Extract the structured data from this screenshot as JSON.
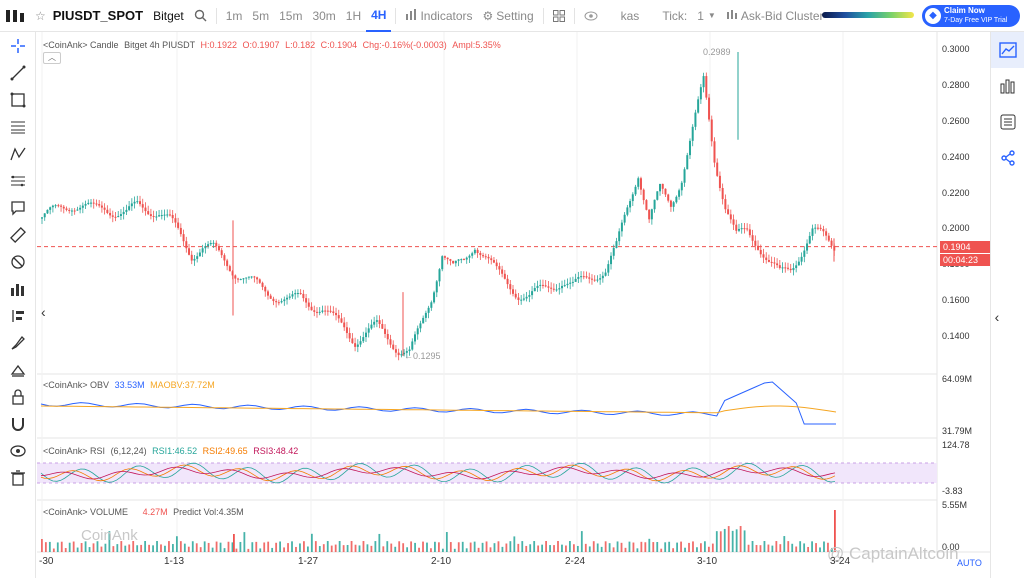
{
  "topbar": {
    "symbol": "PIUSDT_SPOT",
    "exchange": "Bitget",
    "timeframes": [
      "1m",
      "5m",
      "15m",
      "30m",
      "1H",
      "4H"
    ],
    "active_timeframe": "4H",
    "indicators_label": "Indicators",
    "setting_label": "Setting",
    "kas_label": "kas",
    "tick_label": "Tick:",
    "tick_value": "1",
    "askbid_label": "Ask-Bid Cluster",
    "claim_title": "Claim Now",
    "claim_sub": "7-Day Free VIP Trial"
  },
  "main_pane": {
    "label": "<CoinAnk> Candle",
    "legend_symbol": "Bitget 4h PIUSDT",
    "high": "H:0.1922",
    "open": "O:0.1907",
    "low": "L:0.182",
    "close": "C:0.1904",
    "chg": "Chg:-0.16%(-0.0003)",
    "ampl": "Ampl:5.35%",
    "high_marker": "0.2989",
    "low_marker": "0.1295",
    "price_ticks": [
      "0.3000",
      "0.2800",
      "0.2600",
      "0.2400",
      "0.2200",
      "0.2000",
      "0.1800",
      "0.1600",
      "0.1400"
    ],
    "last_price": "0.1904",
    "countdown": "00:04:23"
  },
  "obv_pane": {
    "label": "<CoinAnk> OBV",
    "obv_value": "33.53M",
    "maobv": "MAOBV:37.72M",
    "axis_top": "64.09M",
    "axis_bottom": "31.79M"
  },
  "rsi_pane": {
    "label": "<CoinAnk> RSI",
    "params": "(6,12,24)",
    "rsi1": "RSI1:46.52",
    "rsi2": "RSI2:49.65",
    "rsi3": "RSI3:48.42",
    "axis_top": "124.78",
    "axis_bottom": "-3.83"
  },
  "volume_pane": {
    "label": "<CoinAnk> VOLUME",
    "volume": "4.27M",
    "predict": "Predict Vol:4.35M",
    "axis_top": "5.55M",
    "axis_bottom": "0.00"
  },
  "xaxis": [
    "-30",
    "1-13",
    "1-27",
    "2-10",
    "2-24",
    "3-10",
    "3-24"
  ],
  "auto_label": "AUTO",
  "watermark_left": "CoinAnk",
  "watermark_right": "@ CaptainAltcoin",
  "colors": {
    "accent": "#2962ff",
    "up": "#26a69a",
    "down": "#ef5350"
  },
  "chart_data": {
    "type": "candlestick",
    "price_close_series": [
      0.206,
      0.209,
      0.212,
      0.214,
      0.213,
      0.211,
      0.212,
      0.21,
      0.209,
      0.213,
      0.211,
      0.21,
      0.205,
      0.196,
      0.186,
      0.19,
      0.189,
      0.183,
      0.176,
      0.172,
      0.169,
      0.165,
      0.162,
      0.16,
      0.162,
      0.158,
      0.156,
      0.15,
      0.145,
      0.138,
      0.142,
      0.146,
      0.14,
      0.133,
      0.131,
      0.145,
      0.162,
      0.187,
      0.178,
      0.182,
      0.192,
      0.185,
      0.176,
      0.17,
      0.164,
      0.162,
      0.166,
      0.169,
      0.171,
      0.168,
      0.172,
      0.175,
      0.177,
      0.19,
      0.212,
      0.232,
      0.205,
      0.222,
      0.214,
      0.229,
      0.255,
      0.283,
      0.24,
      0.213,
      0.196,
      0.199,
      0.192,
      0.182,
      0.175,
      0.178,
      0.188,
      0.199,
      0.196,
      0.1904
    ]
  }
}
